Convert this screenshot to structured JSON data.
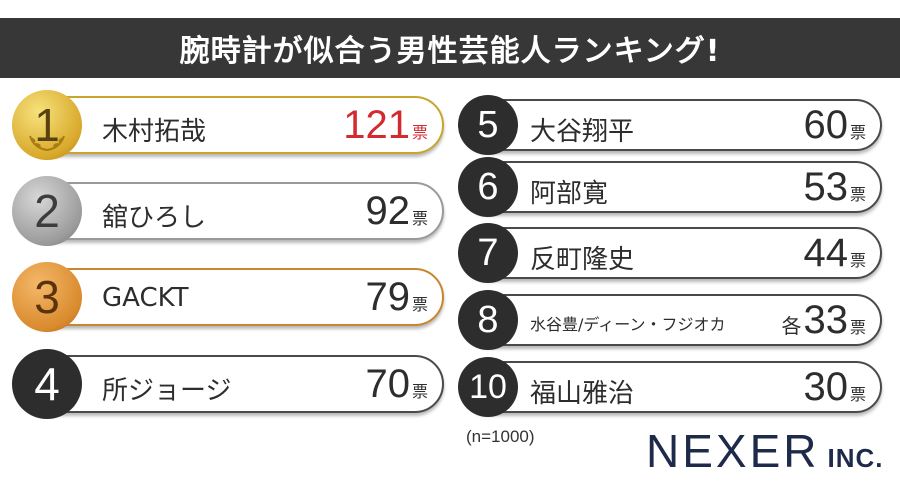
{
  "title": "腕時計が似合う男性芸能人ランキング!",
  "ranking": [
    {
      "rank": "1",
      "name": "木村拓哉",
      "votes": "121",
      "unit": "票",
      "prefix": ""
    },
    {
      "rank": "2",
      "name": "舘ひろし",
      "votes": "92",
      "unit": "票",
      "prefix": ""
    },
    {
      "rank": "3",
      "name": "GACKT",
      "votes": "79",
      "unit": "票",
      "prefix": ""
    },
    {
      "rank": "4",
      "name": "所ジョージ",
      "votes": "70",
      "unit": "票",
      "prefix": ""
    },
    {
      "rank": "5",
      "name": "大谷翔平",
      "votes": "60",
      "unit": "票",
      "prefix": ""
    },
    {
      "rank": "6",
      "name": "阿部寛",
      "votes": "53",
      "unit": "票",
      "prefix": ""
    },
    {
      "rank": "7",
      "name": "反町隆史",
      "votes": "44",
      "unit": "票",
      "prefix": ""
    },
    {
      "rank": "8",
      "name": "水谷豊/ディーン・フジオカ",
      "votes": "33",
      "unit": "票",
      "prefix": "各"
    },
    {
      "rank": "10",
      "name": "福山雅治",
      "votes": "30",
      "unit": "票",
      "prefix": ""
    }
  ],
  "footnote": "(n=1000)",
  "logo": {
    "main": "NEXER",
    "suffix": "INC."
  },
  "colors": {
    "title_bg": "#373737",
    "highlight": "#d32a2f",
    "gold": "#d8a82a",
    "silver": "#9b9b9b",
    "bronze": "#d98a2c",
    "dark": "#2d2d2d",
    "logo": "#1e2a4a"
  }
}
